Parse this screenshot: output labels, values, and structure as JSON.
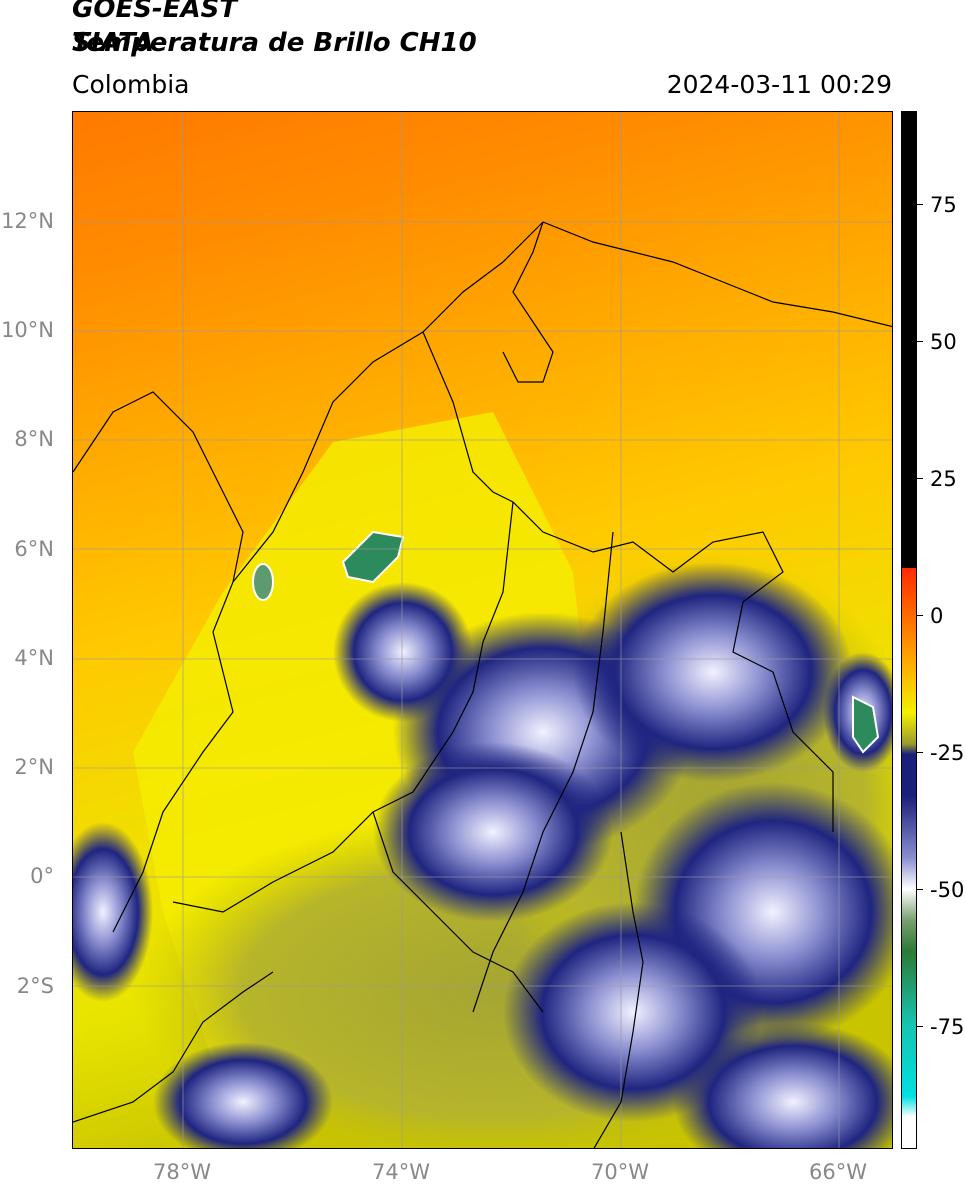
{
  "header": {
    "title_line1": "GOES-EAST",
    "title_line2": "Temperatura de Brillo CH10",
    "organization": "SIATA",
    "region": "Colombia",
    "timestamp": "2024-03-11 00:29"
  },
  "map": {
    "latitude_labels": [
      "12°N",
      "10°N",
      "8°N",
      "6°N",
      "4°N",
      "2°N",
      "0°",
      "2°S"
    ],
    "longitude_labels": [
      "78°W",
      "74°W",
      "70°W",
      "66°W"
    ],
    "extent": {
      "lon_min": -80.0,
      "lon_max": -65.0,
      "lat_min": -5.0,
      "lat_max": 14.0
    }
  },
  "colorbar": {
    "tick_labels": [
      "75",
      "50",
      "25",
      "0",
      "-25",
      "-50",
      "-75"
    ],
    "range": [
      -95,
      90
    ],
    "colors": {
      "black": "#000000",
      "red": "#ff2a00",
      "orange": "#ff9a00",
      "yellow": "#f4f000",
      "olive": "#9a9a2c",
      "navy": "#1a1f7a",
      "white": "#ffffff",
      "green": "#2c7a35",
      "teal": "#16c4b0",
      "cyan": "#00e0e0"
    }
  }
}
